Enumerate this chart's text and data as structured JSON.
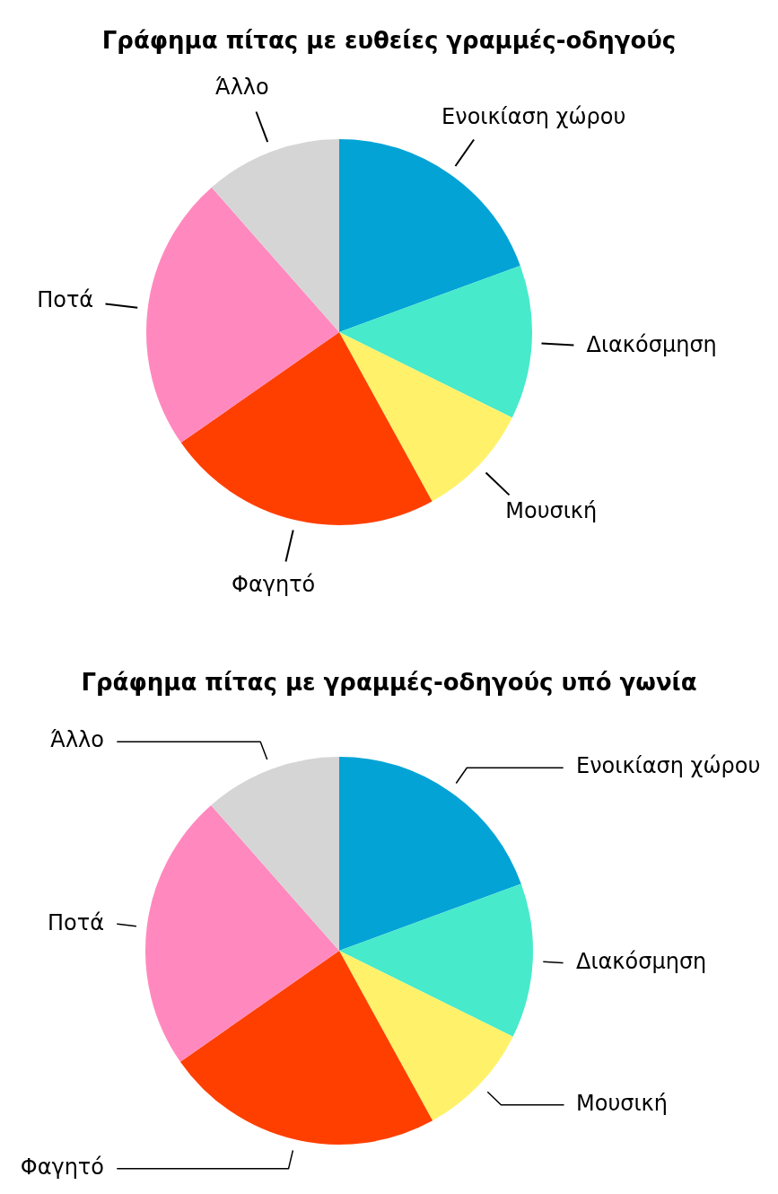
{
  "chart_data": [
    {
      "type": "pie",
      "title": "Γράφημα πίτας με ευθείες γραμμές-οδηγούς",
      "categories": [
        "Ενοικίαση χώρου",
        "Διακόσμηση",
        "Μουσική",
        "Φαγητό",
        "Ποτά",
        "Άλλο"
      ],
      "values": [
        19.4,
        12.9,
        9.7,
        23.3,
        23.2,
        11.5
      ],
      "colors": [
        "#03a3d6",
        "#47eacb",
        "#fff26a",
        "#ff3f00",
        "#ff89be",
        "#d5d5d5"
      ]
    },
    {
      "type": "pie",
      "title": "Γράφημα πίτας με γραμμές-οδηγούς υπό γωνία",
      "categories": [
        "Ενοικίαση χώρου",
        "Διακόσμηση",
        "Μουσική",
        "Φαγητό",
        "Ποτά",
        "Άλλο"
      ],
      "values": [
        19.4,
        12.9,
        9.7,
        23.3,
        23.2,
        11.5
      ],
      "colors": [
        "#03a3d6",
        "#47eacb",
        "#fff26a",
        "#ff3f00",
        "#ff89be",
        "#d5d5d5"
      ]
    }
  ]
}
